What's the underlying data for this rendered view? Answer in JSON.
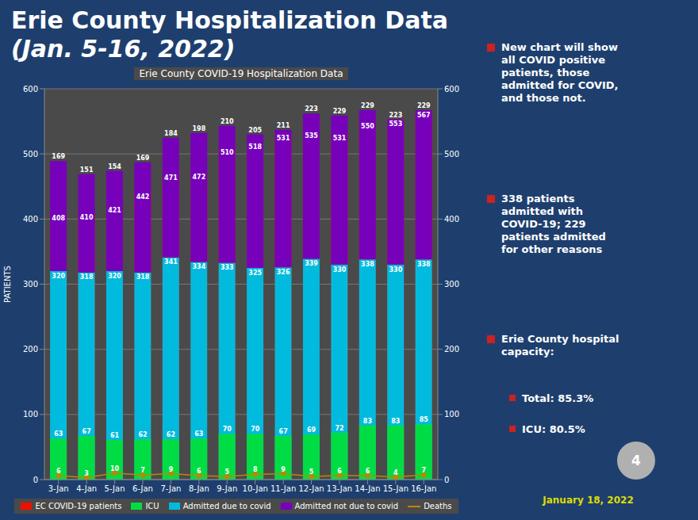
{
  "chart_data": {
    "type": "bar",
    "title": "Erie County COVID-19 Hospitalization Data",
    "subtitle": "Erie County Hospitalization Data (Jan. 5-16, 2022)",
    "ylabel": "PATIENTS",
    "categories": [
      "3-Jan",
      "4-Jan",
      "5-Jan",
      "6-Jan",
      "7-Jan",
      "8-Jan",
      "9-Jan",
      "10-Jan",
      "11-Jan",
      "12-Jan",
      "13-Jan",
      "14-Jan",
      "15-Jan",
      "16-Jan"
    ],
    "series": [
      {
        "name": "EC COVID-19 patients",
        "color": "#ee1100",
        "values": [
          408,
          410,
          421,
          442,
          471,
          472,
          510,
          518,
          531,
          535,
          531,
          550,
          553,
          567
        ]
      },
      {
        "name": "ICU",
        "color": "#00dd44",
        "values": [
          63,
          67,
          61,
          62,
          62,
          63,
          70,
          70,
          67,
          69,
          72,
          83,
          83,
          85
        ]
      },
      {
        "name": "Admitted due to covid",
        "color": "#00bbdd",
        "stacked": true,
        "values": [
          320,
          318,
          320,
          318,
          341,
          334,
          333,
          325,
          326,
          339,
          330,
          338,
          330,
          338
        ]
      },
      {
        "name": "Admitted not due to covid",
        "color": "#7700bb",
        "stacked": true,
        "values": [
          169,
          151,
          154,
          169,
          184,
          198,
          210,
          205,
          211,
          223,
          229,
          229,
          223,
          229
        ]
      },
      {
        "name": "Deaths",
        "type": "line",
        "color": "#bb8800",
        "marker": "circle",
        "values": [
          6,
          3,
          10,
          7,
          9,
          6,
          5,
          8,
          9,
          5,
          6,
          6,
          4,
          7
        ]
      }
    ],
    "ylim": [
      0,
      600
    ],
    "yticks": [
      0,
      100,
      200,
      300,
      400,
      500,
      600
    ],
    "y2lim": [
      0,
      600
    ],
    "y2ticks": [
      0,
      100,
      200,
      300,
      400,
      500,
      600
    ],
    "grid": true,
    "legend": "bottom",
    "data_labels": true,
    "annotations": [
      "New chart will show\nall COVID positive\npatients, those\nadmitted for COVID,\nand those not.",
      "338 patients\nadmitted with\nCOVID-19; 229\npatients admitted\nfor other reasons",
      "Erie County hospital\ncapacity:",
      "Total: 85.3%",
      "ICU: 80.5%",
      "4",
      "January 18, 2022"
    ]
  }
}
